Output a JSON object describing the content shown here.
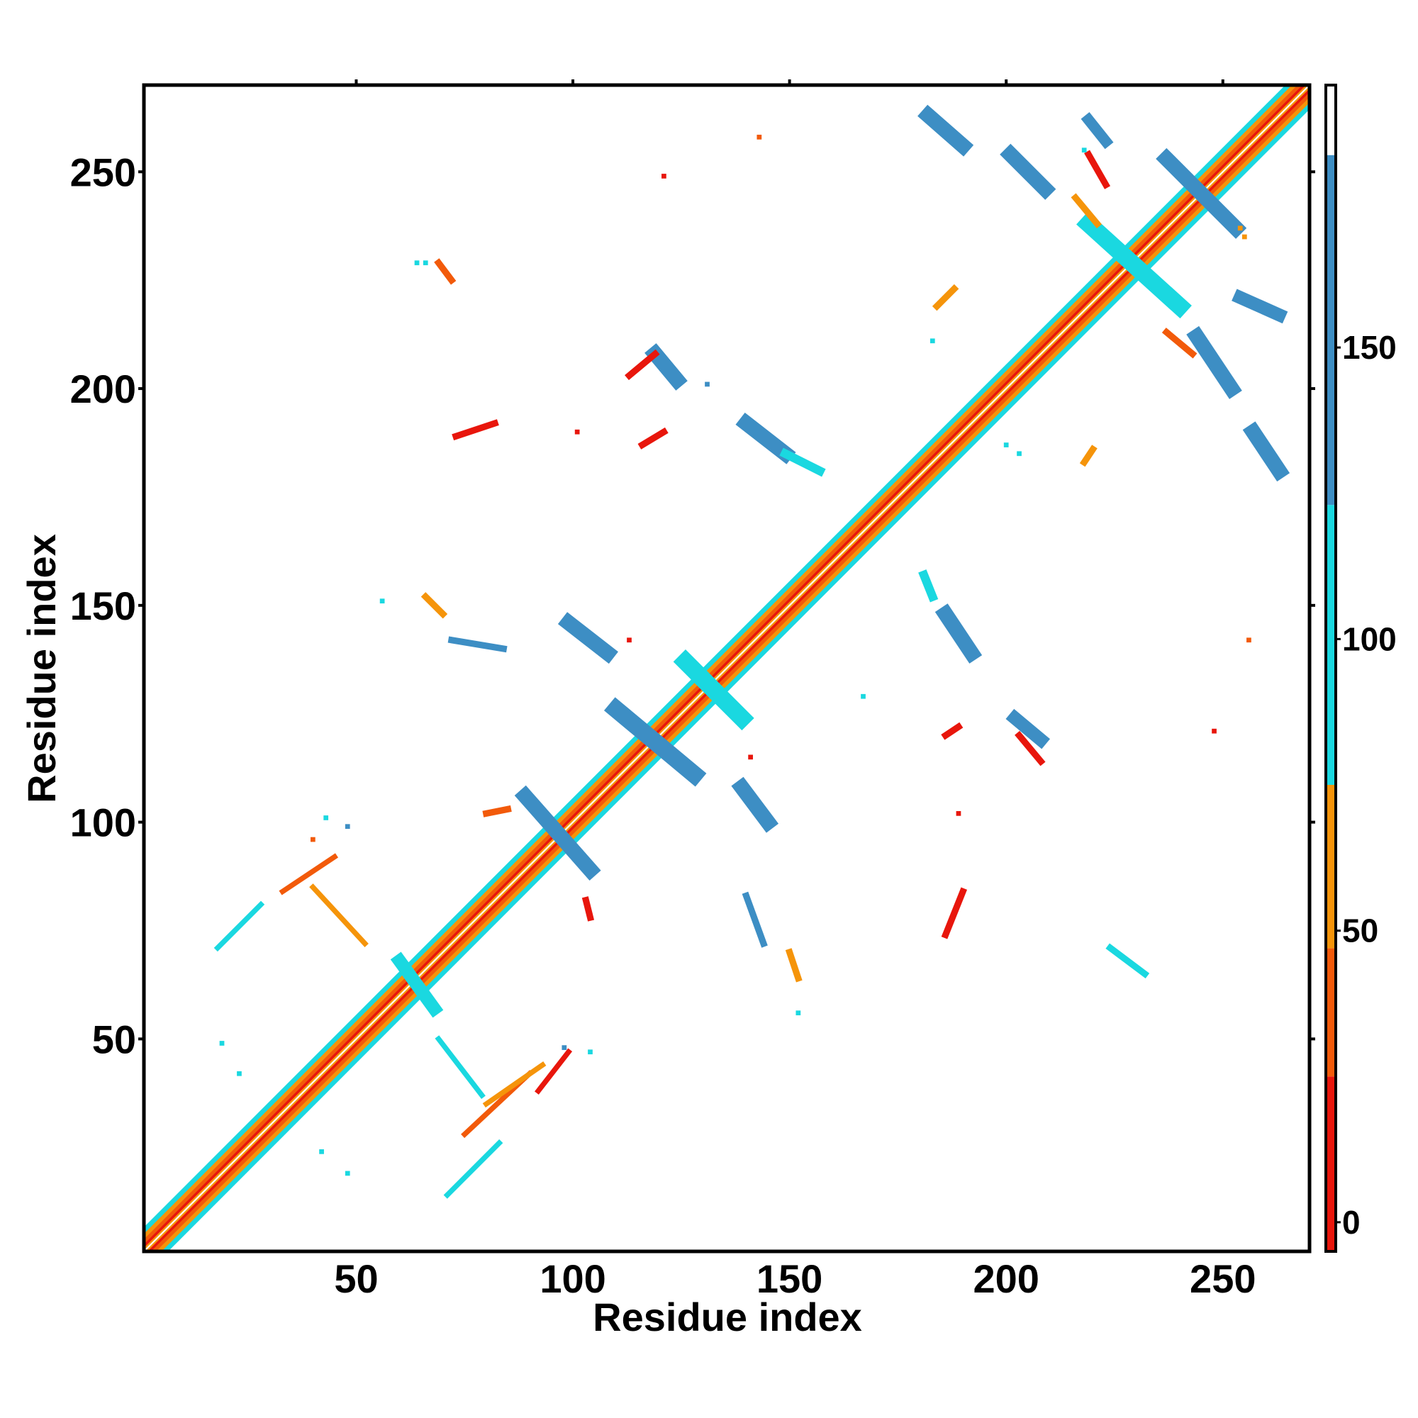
{
  "chart_data": {
    "type": "heatmap",
    "title": "",
    "xlabel": "Residue index",
    "ylabel": "Residue index",
    "xlim": [
      1,
      270
    ],
    "ylim": [
      1,
      270
    ],
    "xticks": [
      50,
      100,
      150,
      200,
      250
    ],
    "yticks": [
      50,
      100,
      150,
      200,
      250
    ],
    "grid": false,
    "legend": "colorbar-right",
    "colorbar": {
      "range": [
        -5,
        195
      ],
      "ticks": [
        0,
        50,
        100,
        150
      ],
      "bins": [
        {
          "from": -5,
          "to": 25,
          "color": "#e8160c"
        },
        {
          "from": 25,
          "to": 47,
          "color": "#f25a0a"
        },
        {
          "from": 47,
          "to": 75,
          "color": "#f5940a"
        },
        {
          "from": 75,
          "to": 123,
          "color": "#1ad8e0"
        },
        {
          "from": 123,
          "to": 183,
          "color": "#3d8ec4"
        },
        {
          "from": 183,
          "to": 195,
          "color": "#ffffff"
        }
      ]
    },
    "diagonal": {
      "from": 1,
      "to": 270
    },
    "segments": [
      {
        "x1": 182,
        "y1": 263,
        "x2": 190,
        "y2": 256,
        "width": 3.5,
        "color": "#3d8ec4"
      },
      {
        "x1": 201,
        "y1": 254,
        "x2": 209,
        "y2": 246,
        "width": 3.5,
        "color": "#3d8ec4"
      },
      {
        "x1": 219,
        "y1": 262,
        "x2": 223,
        "y2": 257,
        "width": 2.5,
        "color": "#3d8ec4"
      },
      {
        "x1": 237,
        "y1": 253,
        "x2": 253,
        "y2": 237,
        "width": 3.5,
        "color": "#3d8ec4"
      },
      {
        "x1": 219,
        "y1": 238,
        "x2": 240,
        "y2": 219,
        "width": 4,
        "color": "#1ad8e0"
      },
      {
        "x1": 244,
        "y1": 212,
        "x2": 252,
        "y2": 200,
        "width": 3.5,
        "color": "#3d8ec4"
      },
      {
        "x1": 254,
        "y1": 221,
        "x2": 263,
        "y2": 217,
        "width": 3,
        "color": "#3d8ec4"
      },
      {
        "x1": 257,
        "y1": 190,
        "x2": 263,
        "y2": 181,
        "width": 3.5,
        "color": "#3d8ec4"
      },
      {
        "x1": 119,
        "y1": 208,
        "x2": 124,
        "y2": 202,
        "width": 3.5,
        "color": "#3d8ec4"
      },
      {
        "x1": 140,
        "y1": 192,
        "x2": 149,
        "y2": 185,
        "width": 3.5,
        "color": "#3d8ec4"
      },
      {
        "x1": 149,
        "y1": 185,
        "x2": 157,
        "y2": 181,
        "width": 2,
        "color": "#1ad8e0"
      },
      {
        "x1": 99,
        "y1": 146,
        "x2": 108,
        "y2": 139,
        "width": 3.5,
        "color": "#3d8ec4"
      },
      {
        "x1": 110,
        "y1": 126,
        "x2": 128,
        "y2": 111,
        "width": 4,
        "color": "#3d8ec4"
      },
      {
        "x1": 89,
        "y1": 106,
        "x2": 104,
        "y2": 89,
        "width": 3.5,
        "color": "#3d8ec4"
      },
      {
        "x1": 139,
        "y1": 108,
        "x2": 145,
        "y2": 100,
        "width": 3.5,
        "color": "#3d8ec4"
      },
      {
        "x1": 186,
        "y1": 148,
        "x2": 192,
        "y2": 139,
        "width": 3.5,
        "color": "#3d8ec4"
      },
      {
        "x1": 202,
        "y1": 124,
        "x2": 208,
        "y2": 119,
        "width": 3,
        "color": "#3d8ec4"
      },
      {
        "x1": 181,
        "y1": 157,
        "x2": 183,
        "y2": 152,
        "width": 2,
        "color": "#1ad8e0"
      },
      {
        "x1": 126,
        "y1": 137,
        "x2": 139,
        "y2": 124,
        "width": 4,
        "color": "#1ad8e0"
      },
      {
        "x1": 60,
        "y1": 68,
        "x2": 68,
        "y2": 57,
        "width": 3,
        "color": "#1ad8e0"
      },
      {
        "x1": 113,
        "y1": 203,
        "x2": 119,
        "y2": 208,
        "width": 1.5,
        "color": "#e8160c"
      },
      {
        "x1": 237,
        "y1": 213,
        "x2": 243,
        "y2": 208,
        "width": 1.5,
        "color": "#f25a0a"
      },
      {
        "x1": 219,
        "y1": 254,
        "x2": 223,
        "y2": 247,
        "width": 1.5,
        "color": "#e8160c"
      },
      {
        "x1": 216,
        "y1": 244,
        "x2": 221,
        "y2": 238,
        "width": 1.5,
        "color": "#f5940a"
      },
      {
        "x1": 203,
        "y1": 120,
        "x2": 208,
        "y2": 114,
        "width": 1.5,
        "color": "#e8160c"
      },
      {
        "x1": 18,
        "y1": 71,
        "x2": 28,
        "y2": 81,
        "width": 1.2,
        "color": "#1ad8e0"
      },
      {
        "x1": 33,
        "y1": 84,
        "x2": 45,
        "y2": 92,
        "width": 1.2,
        "color": "#f25a0a"
      },
      {
        "x1": 40,
        "y1": 85,
        "x2": 52,
        "y2": 72,
        "width": 1.2,
        "color": "#f5940a"
      },
      {
        "x1": 71,
        "y1": 14,
        "x2": 83,
        "y2": 26,
        "width": 1.2,
        "color": "#1ad8e0"
      },
      {
        "x1": 75,
        "y1": 28,
        "x2": 90,
        "y2": 42,
        "width": 1.2,
        "color": "#f25a0a"
      },
      {
        "x1": 80,
        "y1": 35,
        "x2": 93,
        "y2": 44,
        "width": 1.2,
        "color": "#f5940a"
      },
      {
        "x1": 69,
        "y1": 50,
        "x2": 79,
        "y2": 37,
        "width": 1.2,
        "color": "#1ad8e0"
      },
      {
        "x1": 103,
        "y1": 82,
        "x2": 104,
        "y2": 78,
        "width": 1.5,
        "color": "#e8160c"
      },
      {
        "x1": 186,
        "y1": 74,
        "x2": 190,
        "y2": 84,
        "width": 1.5,
        "color": "#e8160c"
      },
      {
        "x1": 140,
        "y1": 83,
        "x2": 144,
        "y2": 72,
        "width": 1.5,
        "color": "#3d8ec4"
      },
      {
        "x1": 150,
        "y1": 70,
        "x2": 152,
        "y2": 64,
        "width": 1.5,
        "color": "#f5940a"
      },
      {
        "x1": 224,
        "y1": 71,
        "x2": 232,
        "y2": 65,
        "width": 1.5,
        "color": "#1ad8e0"
      },
      {
        "x1": 66,
        "y1": 152,
        "x2": 70,
        "y2": 148,
        "width": 1.5,
        "color": "#f5940a"
      },
      {
        "x1": 72,
        "y1": 142,
        "x2": 84,
        "y2": 140,
        "width": 1.5,
        "color": "#3d8ec4"
      },
      {
        "x1": 73,
        "y1": 189,
        "x2": 82,
        "y2": 192,
        "width": 1.5,
        "color": "#e8160c"
      },
      {
        "x1": 116,
        "y1": 187,
        "x2": 121,
        "y2": 190,
        "width": 1.5,
        "color": "#e8160c"
      },
      {
        "x1": 69,
        "y1": 229,
        "x2": 72,
        "y2": 225,
        "width": 1.5,
        "color": "#f25a0a"
      },
      {
        "x1": 184,
        "y1": 219,
        "x2": 188,
        "y2": 223,
        "width": 1.5,
        "color": "#f5940a"
      },
      {
        "x1": 186,
        "y1": 120,
        "x2": 189,
        "y2": 122,
        "width": 1.5,
        "color": "#e8160c"
      },
      {
        "x1": 218,
        "y1": 183,
        "x2": 220,
        "y2": 186,
        "width": 1.5,
        "color": "#f5940a"
      },
      {
        "x1": 92,
        "y1": 38,
        "x2": 99,
        "y2": 47,
        "width": 1.2,
        "color": "#e8160c"
      },
      {
        "x1": 80,
        "y1": 102,
        "x2": 85,
        "y2": 103,
        "width": 1.5,
        "color": "#f25a0a"
      }
    ],
    "points": [
      {
        "x": 143,
        "y": 258,
        "color": "#f25a0a"
      },
      {
        "x": 121,
        "y": 249,
        "color": "#e8160c"
      },
      {
        "x": 101,
        "y": 190,
        "color": "#e8160c"
      },
      {
        "x": 131,
        "y": 201,
        "color": "#3d8ec4"
      },
      {
        "x": 167,
        "y": 129,
        "color": "#1ad8e0"
      },
      {
        "x": 189,
        "y": 102,
        "color": "#e8160c"
      },
      {
        "x": 248,
        "y": 121,
        "color": "#e8160c"
      },
      {
        "x": 256,
        "y": 142,
        "color": "#f25a0a"
      },
      {
        "x": 113,
        "y": 142,
        "color": "#e8160c"
      },
      {
        "x": 56,
        "y": 151,
        "color": "#1ad8e0"
      },
      {
        "x": 43,
        "y": 101,
        "color": "#1ad8e0"
      },
      {
        "x": 48,
        "y": 99,
        "color": "#3d8ec4"
      },
      {
        "x": 40,
        "y": 96,
        "color": "#f25a0a"
      },
      {
        "x": 19,
        "y": 49,
        "color": "#1ad8e0"
      },
      {
        "x": 23,
        "y": 42,
        "color": "#1ad8e0"
      },
      {
        "x": 42,
        "y": 24,
        "color": "#1ad8e0"
      },
      {
        "x": 48,
        "y": 19,
        "color": "#1ad8e0"
      },
      {
        "x": 152,
        "y": 56,
        "color": "#1ad8e0"
      },
      {
        "x": 141,
        "y": 115,
        "color": "#e8160c"
      },
      {
        "x": 218,
        "y": 255,
        "color": "#1ad8e0"
      },
      {
        "x": 255,
        "y": 235,
        "color": "#f5940a"
      },
      {
        "x": 254,
        "y": 237,
        "color": "#f5940a"
      },
      {
        "x": 183,
        "y": 211,
        "color": "#1ad8e0"
      },
      {
        "x": 200,
        "y": 187,
        "color": "#1ad8e0"
      },
      {
        "x": 203,
        "y": 185,
        "color": "#1ad8e0"
      },
      {
        "x": 104,
        "y": 47,
        "color": "#1ad8e0"
      },
      {
        "x": 98,
        "y": 48,
        "color": "#3d8ec4"
      },
      {
        "x": 66,
        "y": 229,
        "color": "#1ad8e0"
      },
      {
        "x": 64,
        "y": 229,
        "color": "#1ad8e0"
      }
    ]
  }
}
